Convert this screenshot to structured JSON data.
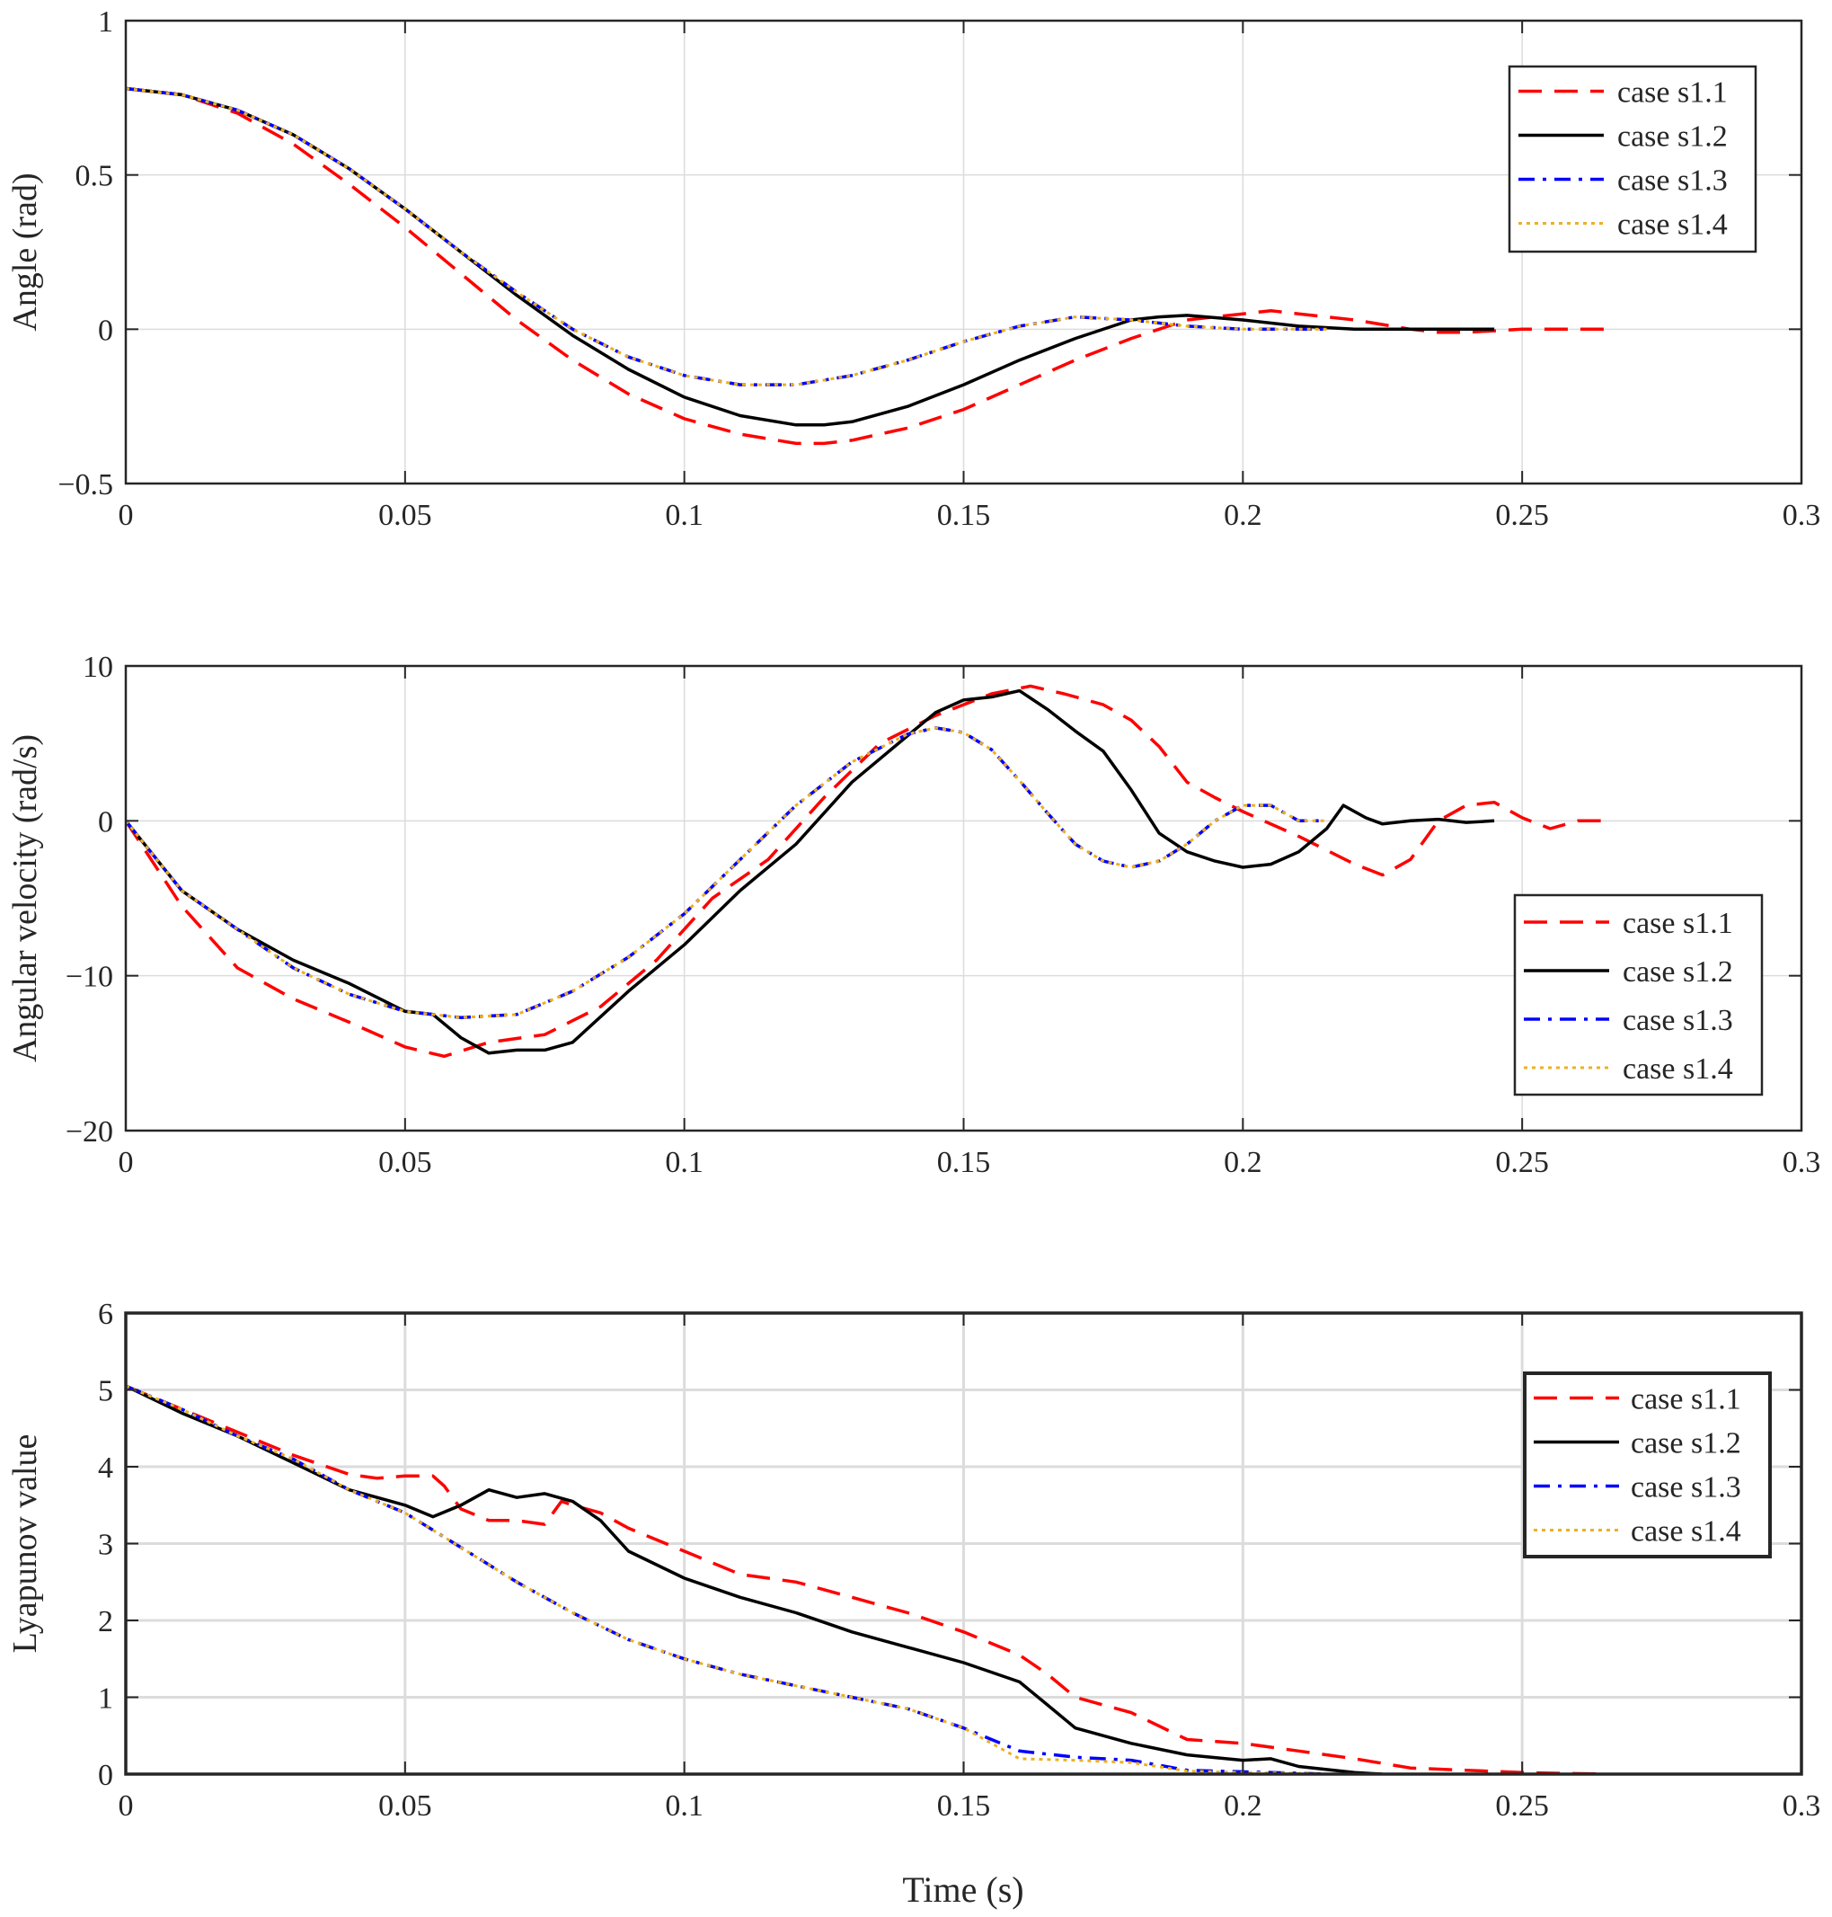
{
  "colors": {
    "case_s1_1": "#ff0000",
    "case_s1_2": "#000000",
    "case_s1_3": "#0000ff",
    "case_s1_4": "#edb120",
    "grid": "#dcdcdc",
    "axis": "#262626"
  },
  "xlabel": "Time (s)",
  "chart_data": [
    {
      "type": "line",
      "title": "",
      "xlabel": "",
      "ylabel": "Angle (rad)",
      "xlim": [
        0,
        0.3
      ],
      "ylim": [
        -0.5,
        1
      ],
      "xticks": [
        0,
        0.05,
        0.1,
        0.15,
        0.2,
        0.25,
        0.3
      ],
      "xtick_labels": [
        "0",
        "0.05",
        "0.1",
        "0.15",
        "0.2",
        "0.25",
        "0.3"
      ],
      "yticks": [
        -0.5,
        0,
        0.5,
        1
      ],
      "ytick_labels": [
        "−0.5",
        "0",
        "0.5",
        "1"
      ],
      "grid": true,
      "legend_position": "top-right",
      "series": [
        {
          "name": "case s1.1",
          "style": "dashed",
          "color": "#ff0000",
          "x": [
            0,
            0.01,
            0.02,
            0.03,
            0.04,
            0.05,
            0.06,
            0.07,
            0.08,
            0.09,
            0.1,
            0.11,
            0.12,
            0.125,
            0.13,
            0.14,
            0.15,
            0.16,
            0.17,
            0.18,
            0.19,
            0.2,
            0.205,
            0.21,
            0.22,
            0.23,
            0.235,
            0.24,
            0.25,
            0.265
          ],
          "y": [
            0.78,
            0.76,
            0.7,
            0.6,
            0.47,
            0.33,
            0.18,
            0.03,
            -0.1,
            -0.21,
            -0.29,
            -0.34,
            -0.37,
            -0.37,
            -0.36,
            -0.32,
            -0.26,
            -0.18,
            -0.1,
            -0.03,
            0.03,
            0.05,
            0.06,
            0.05,
            0.03,
            0.0,
            -0.01,
            -0.01,
            0.0,
            0.0
          ]
        },
        {
          "name": "case s1.2",
          "style": "solid",
          "color": "#000000",
          "x": [
            0,
            0.01,
            0.02,
            0.03,
            0.04,
            0.05,
            0.06,
            0.07,
            0.08,
            0.09,
            0.1,
            0.11,
            0.12,
            0.125,
            0.13,
            0.14,
            0.15,
            0.16,
            0.17,
            0.18,
            0.185,
            0.19,
            0.2,
            0.21,
            0.22,
            0.23,
            0.245
          ],
          "y": [
            0.78,
            0.76,
            0.71,
            0.63,
            0.52,
            0.39,
            0.25,
            0.11,
            -0.02,
            -0.13,
            -0.22,
            -0.28,
            -0.31,
            -0.31,
            -0.3,
            -0.25,
            -0.18,
            -0.1,
            -0.03,
            0.03,
            0.04,
            0.045,
            0.03,
            0.01,
            0.0,
            0.0,
            0.0
          ]
        },
        {
          "name": "case s1.3",
          "style": "dashdot",
          "color": "#0000ff",
          "x": [
            0,
            0.01,
            0.02,
            0.03,
            0.04,
            0.05,
            0.06,
            0.07,
            0.08,
            0.09,
            0.1,
            0.11,
            0.115,
            0.12,
            0.13,
            0.14,
            0.15,
            0.16,
            0.17,
            0.18,
            0.19,
            0.2,
            0.21,
            0.215
          ],
          "y": [
            0.78,
            0.76,
            0.71,
            0.63,
            0.52,
            0.39,
            0.25,
            0.12,
            0.0,
            -0.09,
            -0.15,
            -0.18,
            -0.18,
            -0.18,
            -0.15,
            -0.1,
            -0.04,
            0.01,
            0.04,
            0.03,
            0.01,
            0.0,
            0.0,
            0.0
          ]
        },
        {
          "name": "case s1.4",
          "style": "dotted",
          "color": "#edb120",
          "x": [
            0,
            0.01,
            0.02,
            0.03,
            0.04,
            0.05,
            0.06,
            0.07,
            0.08,
            0.09,
            0.1,
            0.11,
            0.115,
            0.12,
            0.13,
            0.14,
            0.15,
            0.16,
            0.17,
            0.18,
            0.19,
            0.2,
            0.21,
            0.215
          ],
          "y": [
            0.78,
            0.76,
            0.71,
            0.63,
            0.52,
            0.39,
            0.25,
            0.12,
            0.0,
            -0.09,
            -0.15,
            -0.18,
            -0.18,
            -0.18,
            -0.15,
            -0.1,
            -0.04,
            0.01,
            0.04,
            0.03,
            0.01,
            0.0,
            0.0,
            0.0
          ]
        }
      ]
    },
    {
      "type": "line",
      "title": "",
      "xlabel": "",
      "ylabel": "Angular velocity (rad/s)",
      "xlim": [
        0,
        0.3
      ],
      "ylim": [
        -20,
        10
      ],
      "xticks": [
        0,
        0.05,
        0.1,
        0.15,
        0.2,
        0.25,
        0.3
      ],
      "xtick_labels": [
        "0",
        "0.05",
        "0.1",
        "0.15",
        "0.2",
        "0.25",
        "0.3"
      ],
      "yticks": [
        -20,
        -10,
        0,
        10
      ],
      "ytick_labels": [
        "−20",
        "−10",
        "0",
        "10"
      ],
      "grid": true,
      "legend_position": "bottom-right",
      "series": [
        {
          "name": "case s1.1",
          "style": "dashed",
          "color": "#ff0000",
          "x": [
            0,
            0.01,
            0.02,
            0.03,
            0.04,
            0.05,
            0.057,
            0.065,
            0.075,
            0.085,
            0.095,
            0.105,
            0.115,
            0.125,
            0.135,
            0.145,
            0.155,
            0.162,
            0.168,
            0.175,
            0.18,
            0.185,
            0.19,
            0.195,
            0.2,
            0.21,
            0.22,
            0.225,
            0.23,
            0.235,
            0.24,
            0.245,
            0.25,
            0.255,
            0.26,
            0.265
          ],
          "y": [
            0,
            -5.5,
            -9.5,
            -11.5,
            -13,
            -14.6,
            -15.2,
            -14.3,
            -13.8,
            -12,
            -9,
            -5,
            -2.5,
            1.5,
            5,
            6.8,
            8.2,
            8.7,
            8.2,
            7.5,
            6.5,
            4.8,
            2.5,
            1.5,
            0.6,
            -1,
            -2.8,
            -3.5,
            -2.5,
            0,
            1,
            1.2,
            0.2,
            -0.5,
            0,
            0
          ]
        },
        {
          "name": "case s1.2",
          "style": "solid",
          "color": "#000000",
          "x": [
            0,
            0.01,
            0.02,
            0.03,
            0.04,
            0.05,
            0.055,
            0.06,
            0.065,
            0.07,
            0.075,
            0.08,
            0.09,
            0.1,
            0.11,
            0.12,
            0.13,
            0.14,
            0.145,
            0.15,
            0.155,
            0.16,
            0.165,
            0.17,
            0.175,
            0.18,
            0.185,
            0.19,
            0.195,
            0.2,
            0.205,
            0.21,
            0.215,
            0.218,
            0.222,
            0.225,
            0.23,
            0.235,
            0.24,
            0.245
          ],
          "y": [
            0,
            -4.5,
            -7,
            -9,
            -10.5,
            -12.3,
            -12.5,
            -14,
            -15,
            -14.8,
            -14.8,
            -14.3,
            -11,
            -8,
            -4.5,
            -1.5,
            2.5,
            5.5,
            7,
            7.8,
            8,
            8.4,
            7.2,
            5.8,
            4.5,
            2,
            -0.8,
            -2,
            -2.6,
            -3,
            -2.8,
            -2,
            -0.5,
            1,
            0.2,
            -0.2,
            0,
            0.1,
            -0.1,
            0
          ]
        },
        {
          "name": "case s1.3",
          "style": "dashdot",
          "color": "#0000ff",
          "x": [
            0,
            0.01,
            0.02,
            0.03,
            0.04,
            0.05,
            0.06,
            0.07,
            0.08,
            0.09,
            0.1,
            0.11,
            0.12,
            0.13,
            0.14,
            0.145,
            0.15,
            0.155,
            0.16,
            0.165,
            0.17,
            0.175,
            0.18,
            0.185,
            0.19,
            0.195,
            0.2,
            0.205,
            0.21,
            0.215
          ],
          "y": [
            0,
            -4.5,
            -7,
            -9.5,
            -11.2,
            -12.3,
            -12.7,
            -12.5,
            -11,
            -8.8,
            -6,
            -2.5,
            1,
            3.8,
            5.6,
            6,
            5.7,
            4.6,
            2.6,
            0.5,
            -1.5,
            -2.6,
            -3,
            -2.6,
            -1.5,
            0,
            1,
            1,
            0,
            0
          ]
        },
        {
          "name": "case s1.4",
          "style": "dotted",
          "color": "#edb120",
          "x": [
            0,
            0.01,
            0.02,
            0.03,
            0.04,
            0.05,
            0.06,
            0.07,
            0.08,
            0.09,
            0.1,
            0.11,
            0.12,
            0.13,
            0.14,
            0.145,
            0.15,
            0.155,
            0.16,
            0.165,
            0.17,
            0.175,
            0.18,
            0.185,
            0.19,
            0.195,
            0.2,
            0.205,
            0.21,
            0.215
          ],
          "y": [
            0,
            -4.5,
            -7,
            -9.5,
            -11.2,
            -12.3,
            -12.7,
            -12.5,
            -11,
            -8.8,
            -6,
            -2.5,
            1,
            3.8,
            5.6,
            6,
            5.7,
            4.6,
            2.6,
            0.5,
            -1.5,
            -2.6,
            -3,
            -2.6,
            -1.5,
            0,
            1,
            1,
            0,
            0
          ]
        }
      ]
    },
    {
      "type": "line",
      "title": "",
      "xlabel": "Time (s)",
      "ylabel": "Lyapunov value",
      "xlim": [
        0,
        0.3
      ],
      "ylim": [
        0,
        6
      ],
      "xticks": [
        0,
        0.05,
        0.1,
        0.15,
        0.2,
        0.25,
        0.3
      ],
      "xtick_labels": [
        "0",
        "0.05",
        "0.1",
        "0.15",
        "0.2",
        "0.25",
        "0.3"
      ],
      "yticks": [
        0,
        1,
        2,
        3,
        4,
        5,
        6
      ],
      "ytick_labels": [
        "0",
        "1",
        "2",
        "3",
        "4",
        "5",
        "6"
      ],
      "grid": true,
      "legend_position": "top-right",
      "series": [
        {
          "name": "case s1.1",
          "style": "dashed",
          "color": "#ff0000",
          "x": [
            0,
            0.01,
            0.02,
            0.03,
            0.04,
            0.045,
            0.05,
            0.055,
            0.057,
            0.06,
            0.065,
            0.07,
            0.075,
            0.078,
            0.08,
            0.085,
            0.09,
            0.1,
            0.11,
            0.12,
            0.13,
            0.14,
            0.15,
            0.16,
            0.165,
            0.17,
            0.18,
            0.19,
            0.2,
            0.21,
            0.22,
            0.23,
            0.24,
            0.25,
            0.265
          ],
          "y": [
            5.05,
            4.75,
            4.45,
            4.15,
            3.9,
            3.85,
            3.88,
            3.88,
            3.75,
            3.45,
            3.3,
            3.3,
            3.25,
            3.55,
            3.5,
            3.4,
            3.2,
            2.9,
            2.6,
            2.5,
            2.3,
            2.1,
            1.85,
            1.55,
            1.3,
            1.0,
            0.8,
            0.45,
            0.4,
            0.3,
            0.2,
            0.08,
            0.05,
            0.02,
            0
          ]
        },
        {
          "name": "case s1.2",
          "style": "solid",
          "color": "#000000",
          "x": [
            0,
            0.01,
            0.02,
            0.03,
            0.04,
            0.045,
            0.05,
            0.055,
            0.06,
            0.065,
            0.07,
            0.075,
            0.08,
            0.085,
            0.09,
            0.1,
            0.11,
            0.12,
            0.13,
            0.14,
            0.15,
            0.16,
            0.165,
            0.17,
            0.18,
            0.19,
            0.2,
            0.205,
            0.21,
            0.22,
            0.225
          ],
          "y": [
            5.05,
            4.7,
            4.4,
            4.05,
            3.7,
            3.6,
            3.5,
            3.35,
            3.5,
            3.7,
            3.6,
            3.65,
            3.55,
            3.3,
            2.9,
            2.55,
            2.3,
            2.1,
            1.85,
            1.65,
            1.45,
            1.2,
            0.9,
            0.6,
            0.4,
            0.25,
            0.18,
            0.2,
            0.1,
            0.02,
            0
          ]
        },
        {
          "name": "case s1.3",
          "style": "dashdot",
          "color": "#0000ff",
          "x": [
            0,
            0.01,
            0.02,
            0.03,
            0.04,
            0.05,
            0.06,
            0.07,
            0.08,
            0.09,
            0.1,
            0.11,
            0.12,
            0.13,
            0.14,
            0.15,
            0.16,
            0.17,
            0.18,
            0.19,
            0.2,
            0.21,
            0.215
          ],
          "y": [
            5.05,
            4.75,
            4.4,
            4.1,
            3.7,
            3.4,
            2.95,
            2.5,
            2.1,
            1.75,
            1.5,
            1.3,
            1.15,
            1.0,
            0.85,
            0.6,
            0.3,
            0.22,
            0.18,
            0.05,
            0.03,
            0.01,
            0
          ]
        },
        {
          "name": "case s1.4",
          "style": "dotted",
          "color": "#edb120",
          "x": [
            0,
            0.01,
            0.02,
            0.03,
            0.04,
            0.05,
            0.06,
            0.07,
            0.08,
            0.09,
            0.1,
            0.11,
            0.12,
            0.13,
            0.14,
            0.15,
            0.16,
            0.17,
            0.18,
            0.19,
            0.2,
            0.21,
            0.215
          ],
          "y": [
            5.05,
            4.75,
            4.4,
            4.1,
            3.7,
            3.4,
            2.95,
            2.5,
            2.1,
            1.75,
            1.5,
            1.3,
            1.15,
            1.0,
            0.85,
            0.6,
            0.2,
            0.18,
            0.15,
            0.04,
            0.02,
            0.01,
            0
          ]
        }
      ]
    }
  ]
}
